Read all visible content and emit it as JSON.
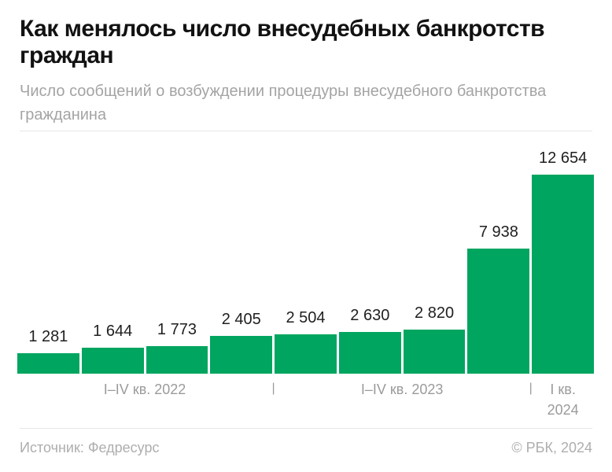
{
  "header": {
    "title": "Как менялось число внесудебных банкротств граждан",
    "subtitle": "Число сообщений о возбуждении процедуры внесудебного банкротства гражданина"
  },
  "chart_data": {
    "type": "bar",
    "title": "Как менялось число внесудебных банкротств граждан",
    "subtitle": "Число сообщений о возбуждении процедуры внесудебного банкротства гражданина",
    "categories": [
      "I кв. 2022",
      "II кв. 2022",
      "III кв. 2022",
      "IV кв. 2022",
      "I кв. 2023",
      "II кв. 2023",
      "III кв. 2023",
      "IV кв. 2023",
      "I кв. 2024"
    ],
    "values": [
      1281,
      1644,
      1773,
      2405,
      2504,
      2630,
      2820,
      7938,
      12654
    ],
    "value_labels": [
      "1 281",
      "1 644",
      "1 773",
      "2 405",
      "2 504",
      "2 630",
      "2 820",
      "7 938",
      "12 654"
    ],
    "axis_groups": [
      {
        "label": "I–IV кв. 2022",
        "span": 4,
        "lines": [
          "I–IV кв. 2022"
        ]
      },
      {
        "label": "I–IV кв. 2023",
        "span": 4,
        "lines": [
          "I–IV кв. 2023"
        ]
      },
      {
        "label": "I кв. 2024",
        "span": 1,
        "lines": [
          "I кв.",
          "2024"
        ]
      }
    ],
    "group_separator": "|",
    "bar_color": "#00a55f",
    "ylim": [
      0,
      12654
    ],
    "grid": false,
    "legend": false,
    "value_labels_position": "above-bars"
  },
  "footer": {
    "source": "Источник: Федресурс",
    "copyright": "© РБК, 2024"
  }
}
